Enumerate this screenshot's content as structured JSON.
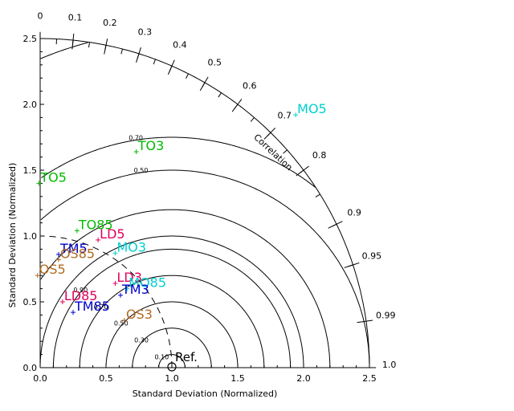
{
  "chart_data": {
    "type": "scatter",
    "subtype": "taylor-diagram",
    "xlabel": "Standard Deviation (Normalized)",
    "ylabel": "Standard Deviation (Normalized)",
    "xlim": [
      0,
      2.5
    ],
    "ylim": [
      0,
      2.5
    ],
    "x_ticks": [
      "0.0",
      "0.5",
      "1.0",
      "1.5",
      "2.0",
      "2.5"
    ],
    "y_ticks": [
      "0.0",
      "0.5",
      "1.0",
      "1.5",
      "2.0",
      "2.5"
    ],
    "correlation_label": "Correlation",
    "correlation_ticks": [
      "0",
      "0.1",
      "0.2",
      "0.3",
      "0.4",
      "0.5",
      "0.6",
      "0.7",
      "0.8",
      "0.9",
      "0.95",
      "0.99",
      "1.0"
    ],
    "rms_contours": [
      {
        "r": 0.1,
        "label": "0.10"
      },
      {
        "r": 0.3,
        "label": "0.30"
      },
      {
        "r": 0.5,
        "label": "0.50"
      },
      {
        "r": 0.7,
        "label": "0.70"
      },
      {
        "r": 0.9,
        "label": "0.90"
      },
      {
        "r": 1.0,
        "label": ""
      },
      {
        "r": 1.2,
        "label": ""
      },
      {
        "r": 1.5,
        "label": "0.50"
      },
      {
        "r": 1.75,
        "label": "0.70"
      },
      {
        "r": 2.55,
        "label": "0.30"
      }
    ],
    "reference": {
      "std": 1.0,
      "label": "Ref."
    },
    "points": [
      {
        "label": "MO5",
        "x": 1.94,
        "y": 1.92,
        "color": "#00d0d0"
      },
      {
        "label": "TO3",
        "x": 0.73,
        "y": 1.64,
        "color": "#00bb00"
      },
      {
        "label": "TO5",
        "x": -0.01,
        "y": 1.4,
        "color": "#00bb00"
      },
      {
        "label": "TO85",
        "x": 0.28,
        "y": 1.04,
        "color": "#00bb00"
      },
      {
        "label": "LD5",
        "x": 0.44,
        "y": 0.97,
        "color": "#e0005a"
      },
      {
        "label": "MO3",
        "x": 0.57,
        "y": 0.87,
        "color": "#00d0d0"
      },
      {
        "label": "TM5",
        "x": 0.14,
        "y": 0.86,
        "color": "#0000cc"
      },
      {
        "label": "OS85",
        "x": 0.14,
        "y": 0.82,
        "color": "#b06a20"
      },
      {
        "label": "OS5",
        "x": -0.02,
        "y": 0.7,
        "color": "#b06a20"
      },
      {
        "label": "LD3",
        "x": 0.57,
        "y": 0.64,
        "color": "#e0005a"
      },
      {
        "label": "MO85",
        "x": 0.66,
        "y": 0.6,
        "color": "#00d0d0"
      },
      {
        "label": "TM3",
        "x": 0.61,
        "y": 0.55,
        "color": "#0000cc"
      },
      {
        "label": "LD85",
        "x": 0.17,
        "y": 0.5,
        "color": "#e0005a"
      },
      {
        "label": "TM85",
        "x": 0.25,
        "y": 0.42,
        "color": "#0000cc"
      },
      {
        "label": "OS3",
        "x": 0.64,
        "y": 0.36,
        "color": "#b06a20"
      }
    ]
  }
}
